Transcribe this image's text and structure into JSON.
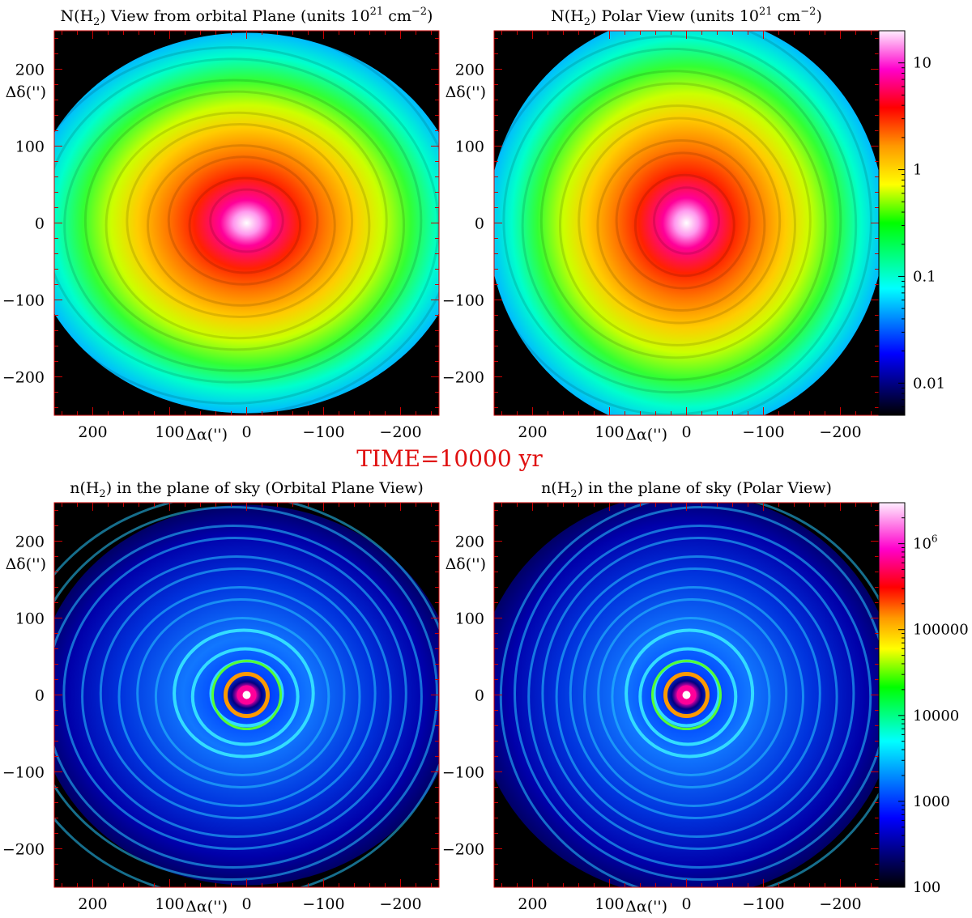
{
  "time_label": "TIME=10000 yr",
  "chart_data": [
    {
      "type": "heatmap",
      "title_prefix": "N(H",
      "title_sub": "2",
      "title_mid": ") View from orbital Plane (units 10",
      "title_sup": "21",
      "title_unit": " cm",
      "title_unit_sup": "−2",
      "title_end": ")",
      "xlabel": "Δα('')",
      "ylabel": "Δδ('')",
      "xlim": [
        250,
        -250
      ],
      "ylim": [
        -250,
        250
      ],
      "xticks": [
        200,
        100,
        0,
        -100,
        -200
      ],
      "xtick_labels": [
        "200",
        "100",
        "0",
        "−100",
        "−200"
      ],
      "yticks": [
        200,
        100,
        0,
        -100,
        -200
      ],
      "ytick_labels": [
        "200",
        "100",
        "0",
        "−100",
        "−200"
      ],
      "view": "orbital",
      "field": "column"
    },
    {
      "type": "heatmap",
      "title_prefix": "N(H",
      "title_sub": "2",
      "title_mid": ") Polar View (units 10",
      "title_sup": "21",
      "title_unit": " cm",
      "title_unit_sup": "−2",
      "title_end": ")",
      "xlabel": "Δα('')",
      "ylabel": "Δδ('')",
      "xlim": [
        250,
        -250
      ],
      "ylim": [
        -250,
        250
      ],
      "xticks": [
        200,
        100,
        0,
        -100,
        -200
      ],
      "xtick_labels": [
        "200",
        "100",
        "0",
        "−100",
        "−200"
      ],
      "yticks": [
        200,
        100,
        0,
        -100,
        -200
      ],
      "ytick_labels": [
        "200",
        "100",
        "0",
        "−100",
        "−200"
      ],
      "view": "polar",
      "field": "column",
      "colorbar": {
        "scale": "log",
        "range": [
          0.005,
          20
        ],
        "ticks": [
          10,
          1,
          0.1,
          0.01
        ],
        "tick_labels": [
          "10",
          "1",
          "0.1",
          "0.01"
        ]
      }
    },
    {
      "type": "heatmap",
      "title_prefix": "n(H",
      "title_sub": "2",
      "title_mid": ") in the plane of sky (Orbital Plane View)",
      "xlabel": "Δα('')",
      "ylabel": "Δδ('')",
      "xlim": [
        250,
        -250
      ],
      "ylim": [
        -250,
        250
      ],
      "xticks": [
        200,
        100,
        0,
        -100,
        -200
      ],
      "xtick_labels": [
        "200",
        "100",
        "0",
        "−100",
        "−200"
      ],
      "yticks": [
        200,
        100,
        0,
        -100,
        -200
      ],
      "ytick_labels": [
        "200",
        "100",
        "0",
        "−100",
        "−200"
      ],
      "view": "orbital",
      "field": "density"
    },
    {
      "type": "heatmap",
      "title_prefix": "n(H",
      "title_sub": "2",
      "title_mid": ") in the plane of sky (Polar View)",
      "xlabel": "Δα('')",
      "ylabel": "Δδ('')",
      "xlim": [
        250,
        -250
      ],
      "ylim": [
        -250,
        250
      ],
      "xticks": [
        200,
        100,
        0,
        -100,
        -200
      ],
      "xtick_labels": [
        "200",
        "100",
        "0",
        "−100",
        "−200"
      ],
      "yticks": [
        200,
        100,
        0,
        -100,
        -200
      ],
      "ytick_labels": [
        "200",
        "100",
        "0",
        "−100",
        "−200"
      ],
      "view": "polar",
      "field": "density",
      "colorbar": {
        "scale": "log",
        "range": [
          100,
          3000000
        ],
        "ticks": [
          1000000,
          100000,
          10000,
          1000,
          100
        ],
        "tick_labels": [
          "10^6",
          "100000",
          "10000",
          "1000",
          "100"
        ]
      }
    }
  ]
}
